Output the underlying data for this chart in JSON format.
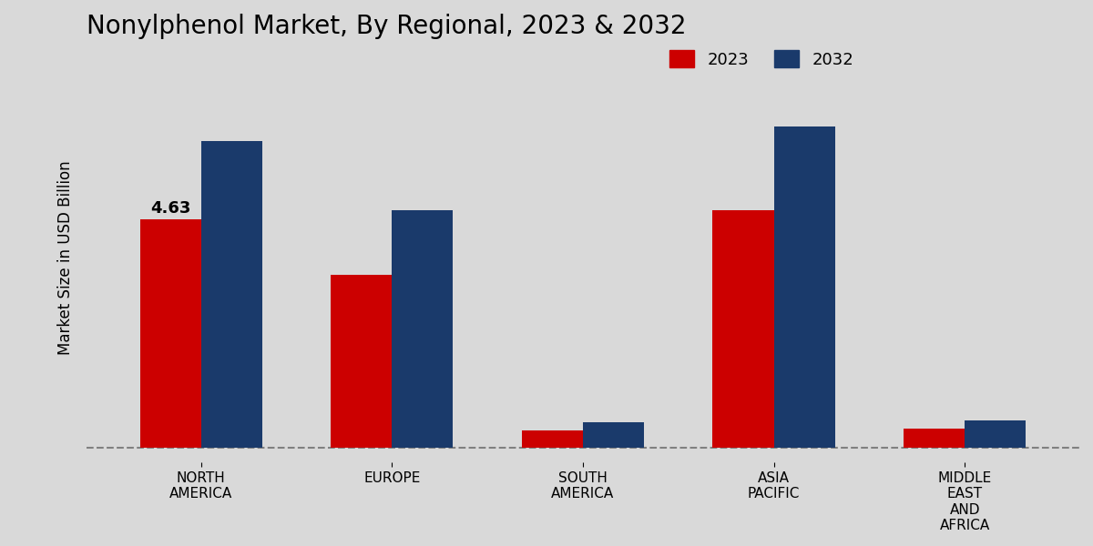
{
  "title": "Nonylphenol Market, By Regional, 2023 & 2032",
  "ylabel": "Market Size in USD Billion",
  "categories": [
    "NORTH\nAMERICA",
    "EUROPE",
    "SOUTH\nAMERICA",
    "ASIA\nPACIFIC",
    "MIDDLE\nEAST\nAND\nAFRICA"
  ],
  "values_2023": [
    4.63,
    3.5,
    0.35,
    4.8,
    0.38
  ],
  "values_2032": [
    6.2,
    4.8,
    0.52,
    6.5,
    0.55
  ],
  "color_2023": "#cc0000",
  "color_2032": "#1a3a6b",
  "annotation_value": "4.63",
  "annotation_index": 0,
  "bar_width": 0.32,
  "background_color": "#d9d9d9",
  "plot_bg_color": "#d9d9d9",
  "legend_labels": [
    "2023",
    "2032"
  ],
  "title_fontsize": 20,
  "label_fontsize": 12,
  "tick_fontsize": 11,
  "dashed_line_y": 0.0
}
